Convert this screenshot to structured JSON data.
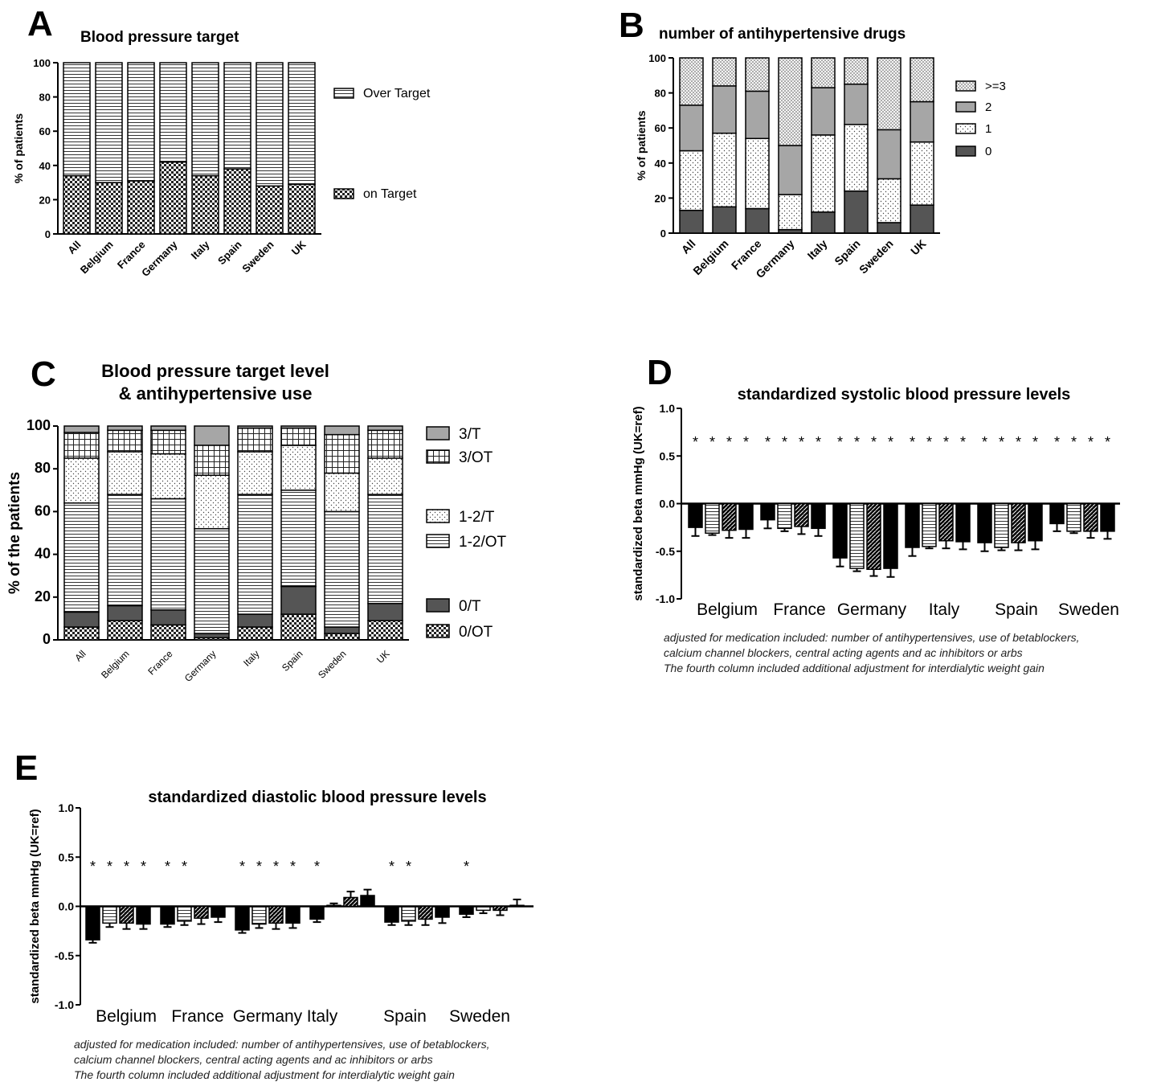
{
  "chart_data": [
    {
      "panel": "A",
      "type": "bar",
      "stacked": true,
      "title": "Blood pressure target",
      "ylabel": "% of patients",
      "ylim": [
        0,
        100
      ],
      "yticks": [
        0,
        20,
        40,
        60,
        80,
        100
      ],
      "categories": [
        "All",
        "Belgium",
        "France",
        "Germany",
        "Italy",
        "Spain",
        "Sweden",
        "UK"
      ],
      "series": [
        {
          "name": "on Target",
          "pattern": "check",
          "values": [
            34,
            30,
            31,
            42,
            34,
            38,
            28,
            29
          ]
        },
        {
          "name": "Over Target",
          "pattern": "hlines",
          "values": [
            66,
            70,
            69,
            58,
            66,
            62,
            72,
            71
          ]
        }
      ],
      "legend": [
        "Over Target",
        "on Target"
      ]
    },
    {
      "panel": "B",
      "type": "bar",
      "stacked": true,
      "title": "number of antihypertensive drugs",
      "ylabel": "% of patients",
      "ylim": [
        0,
        100
      ],
      "yticks": [
        0,
        20,
        40,
        60,
        80,
        100
      ],
      "categories": [
        "All",
        "Belgium",
        "France",
        "Germany",
        "Italy",
        "Spain",
        "Sweden",
        "UK"
      ],
      "series": [
        {
          "name": "0",
          "pattern": "dark",
          "values": [
            13,
            15,
            14,
            2,
            12,
            24,
            6,
            16
          ]
        },
        {
          "name": "1",
          "pattern": "dots",
          "values": [
            34,
            42,
            40,
            20,
            44,
            38,
            25,
            36
          ]
        },
        {
          "name": "2",
          "pattern": "gray",
          "values": [
            26,
            27,
            27,
            28,
            27,
            23,
            28,
            23
          ]
        },
        {
          "name": ">=3",
          "pattern": "densedots",
          "values": [
            27,
            16,
            19,
            50,
            17,
            15,
            41,
            25
          ]
        }
      ],
      "legend": [
        ">=3",
        "2",
        "1",
        "0"
      ]
    },
    {
      "panel": "C",
      "type": "bar",
      "stacked": true,
      "title": [
        "Blood pressure target level",
        "& antihypertensive use"
      ],
      "ylabel": "% of the patients",
      "ylim": [
        0,
        100
      ],
      "yticks": [
        0,
        20,
        40,
        60,
        80,
        100
      ],
      "categories": [
        "All",
        "Belgium",
        "France",
        "Germany",
        "Italy",
        "Spain",
        "Sweden",
        "UK"
      ],
      "series": [
        {
          "name": "0/OT",
          "pattern": "check",
          "values": [
            6,
            9,
            7,
            1,
            6,
            12,
            3,
            9
          ]
        },
        {
          "name": "0/T",
          "pattern": "dark",
          "values": [
            7,
            7,
            7,
            2,
            6,
            13,
            3,
            8
          ]
        },
        {
          "name": "1-2/OT",
          "pattern": "hlines",
          "values": [
            51,
            52,
            52,
            49,
            56,
            45,
            54,
            51
          ]
        },
        {
          "name": "1-2/T",
          "pattern": "dots",
          "values": [
            21,
            20,
            21,
            25,
            20,
            21,
            18,
            17
          ]
        },
        {
          "name": "3/OT",
          "pattern": "grid",
          "values": [
            12,
            10,
            11,
            14,
            11,
            8,
            18,
            13
          ]
        },
        {
          "name": "3/T",
          "pattern": "gray",
          "values": [
            3,
            2,
            2,
            9,
            1,
            1,
            4,
            2
          ]
        }
      ],
      "legend": [
        "3/T",
        "3/OT",
        "1-2/T",
        "1-2/OT",
        "0/T",
        "0/OT"
      ]
    },
    {
      "panel": "D",
      "type": "bar",
      "title": "standardized systolic blood pressure levels",
      "ylabel": "standardized beta mmHg (UK=ref)",
      "ylim": [
        -1.0,
        1.0
      ],
      "yticks": [
        -1.0,
        -0.5,
        0.0,
        0.5,
        1.0
      ],
      "categories": [
        "Belgium",
        "France",
        "Germany",
        "Italy",
        "Spain",
        "Sweden"
      ],
      "series": [
        {
          "pattern": "solid",
          "values": [
            -0.25,
            -0.17,
            -0.57,
            -0.46,
            -0.41,
            -0.21
          ],
          "err": [
            0.09,
            0.09,
            0.09,
            0.09,
            0.09,
            0.08
          ]
        },
        {
          "pattern": "hlines",
          "values": [
            -0.31,
            -0.26,
            -0.68,
            -0.45,
            -0.46,
            -0.29
          ],
          "err": [
            0.02,
            0.03,
            0.03,
            0.02,
            0.03,
            0.02
          ]
        },
        {
          "pattern": "diag",
          "values": [
            -0.28,
            -0.24,
            -0.69,
            -0.39,
            -0.41,
            -0.29
          ],
          "err": [
            0.08,
            0.08,
            0.07,
            0.08,
            0.08,
            0.07
          ]
        },
        {
          "pattern": "solid",
          "values": [
            -0.27,
            -0.26,
            -0.68,
            -0.4,
            -0.39,
            -0.29
          ],
          "err": [
            0.09,
            0.08,
            0.09,
            0.08,
            0.09,
            0.08
          ]
        }
      ],
      "significance": [
        [
          1,
          1,
          1,
          1
        ],
        [
          1,
          1,
          1,
          1
        ],
        [
          1,
          1,
          1,
          1
        ],
        [
          1,
          1,
          1,
          1
        ],
        [
          1,
          1,
          1,
          1
        ],
        [
          1,
          1,
          1,
          1
        ]
      ],
      "footnote": [
        "adjusted for medication included: number of antihypertensives, use of betablockers,",
        "calcium channel blockers, central acting agents and ac inhibitors or arbs",
        "The fourth column included additional adjustment for interdialytic weight gain"
      ]
    },
    {
      "panel": "E",
      "type": "bar",
      "title": "standardized diastolic blood pressure levels",
      "ylabel": "standardized beta mmHg (UK=ref)",
      "ylim": [
        -1.0,
        1.0
      ],
      "yticks": [
        -1.0,
        -0.5,
        0.0,
        0.5,
        1.0
      ],
      "categories": [
        "Belgium",
        "France",
        "Germany",
        "Italy",
        "Spain",
        "Sweden"
      ],
      "series": [
        {
          "pattern": "solid",
          "values": [
            -0.34,
            -0.18,
            -0.24,
            -0.13,
            -0.16,
            -0.08
          ],
          "err": [
            0.03,
            0.03,
            0.03,
            0.03,
            0.03,
            0.03
          ]
        },
        {
          "pattern": "hlines",
          "values": [
            -0.17,
            -0.15,
            -0.18,
            0.01,
            -0.15,
            -0.04
          ],
          "err": [
            0.04,
            0.04,
            0.04,
            0.02,
            0.04,
            0.03
          ]
        },
        {
          "pattern": "diag",
          "values": [
            -0.17,
            -0.12,
            -0.17,
            0.09,
            -0.13,
            -0.04
          ],
          "err": [
            0.06,
            0.06,
            0.06,
            0.06,
            0.06,
            0.05
          ]
        },
        {
          "pattern": "solid",
          "values": [
            -0.18,
            -0.11,
            -0.17,
            0.11,
            -0.11,
            0.01
          ],
          "err": [
            0.05,
            0.05,
            0.05,
            0.06,
            0.06,
            0.06
          ]
        }
      ],
      "significance": [
        [
          1,
          1,
          1,
          1
        ],
        [
          1,
          1,
          0,
          0
        ],
        [
          1,
          1,
          1,
          1
        ],
        [
          1,
          0,
          0,
          0
        ],
        [
          1,
          1,
          0,
          0
        ],
        [
          1,
          0,
          0,
          0
        ]
      ],
      "footnote": [
        "adjusted for medication included: number of antihypertensives, use of betablockers,",
        "calcium channel blockers, central acting agents and ac inhibitors or arbs",
        "The fourth column included additional adjustment for interdialytic weight gain"
      ]
    }
  ]
}
